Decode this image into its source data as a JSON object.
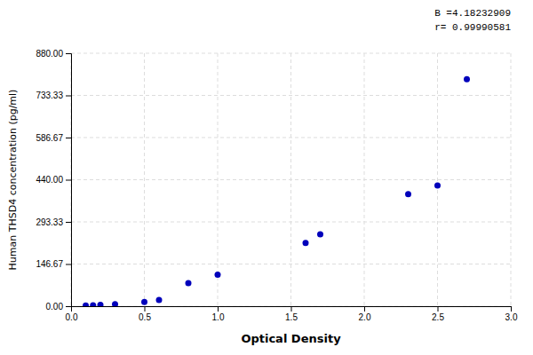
{
  "chart_data": {
    "type": "scatter",
    "x": [
      0.1,
      0.15,
      0.2,
      0.3,
      0.5,
      0.6,
      0.8,
      1.0,
      1.6,
      1.7,
      2.3,
      2.5,
      2.7
    ],
    "values": [
      2.0,
      3.0,
      4.5,
      7.0,
      15.0,
      22.0,
      80.0,
      110.0,
      220.0,
      250.0,
      390.0,
      420.0,
      790.0
    ],
    "color": "#0000BB",
    "xlabel": "Optical Density",
    "ylabel": "Human THSD4 concentration (pg/ml)",
    "xlim": [
      0.0,
      3.0
    ],
    "ylim": [
      0.0,
      880.0
    ],
    "xticks": [
      {
        "value": 0.0,
        "label": "0.0"
      },
      {
        "value": 0.5,
        "label": "0.5"
      },
      {
        "value": 1.0,
        "label": "1.0"
      },
      {
        "value": 1.5,
        "label": "1.5"
      },
      {
        "value": 2.0,
        "label": "2.0"
      },
      {
        "value": 2.5,
        "label": "2.5"
      },
      {
        "value": 3.0,
        "label": "3.0"
      }
    ],
    "yticks": [
      {
        "value": 0.0,
        "label": "0.00"
      },
      {
        "value": 146.67,
        "label": "146.67"
      },
      {
        "value": 293.33,
        "label": "293.33"
      },
      {
        "value": 440.0,
        "label": "440.00"
      },
      {
        "value": 586.67,
        "label": "586.67"
      },
      {
        "value": 733.33,
        "label": "733.33"
      },
      {
        "value": 880.0,
        "label": "880.00"
      }
    ],
    "annotations": [
      "B =4.18232909",
      "r= 0.99990581"
    ],
    "grid": true
  }
}
